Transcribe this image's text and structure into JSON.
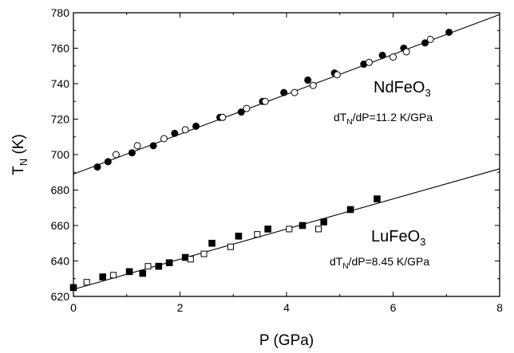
{
  "chart_data": {
    "type": "scatter",
    "xlabel": "P (GPa)",
    "ylabel": "T_N (K)",
    "xlim": [
      0,
      8
    ],
    "ylim": [
      620,
      780
    ],
    "x_ticks": [
      "0",
      "2",
      "4",
      "6",
      "8"
    ],
    "y_ticks": [
      "620",
      "640",
      "660",
      "680",
      "700",
      "720",
      "740",
      "760",
      "780"
    ],
    "grid": false,
    "annotations": {
      "nd_name": "NdFeO3",
      "nd_slope": "dTN/dP=11.2 K/GPa",
      "lu_name": "LuFeO3",
      "lu_slope": "dTN/dP=8.45 K/GPa"
    },
    "series": [
      {
        "compound": "NdFeO3",
        "marker": "filled-circle",
        "x": [
          0.45,
          0.65,
          1.1,
          1.5,
          1.9,
          2.3,
          2.75,
          3.15,
          3.55,
          3.95,
          4.4,
          4.9,
          5.45,
          5.8,
          6.2,
          6.6,
          7.05
        ],
        "y": [
          693,
          696,
          701,
          705,
          712,
          716,
          721,
          724,
          730,
          735,
          742,
          746,
          751,
          756,
          760,
          763,
          769
        ]
      },
      {
        "compound": "NdFeO3",
        "marker": "open-circle",
        "x": [
          0.8,
          1.2,
          1.7,
          2.1,
          2.8,
          3.25,
          3.6,
          4.15,
          4.5,
          4.95,
          5.55,
          6.0,
          6.25,
          6.7
        ],
        "y": [
          700,
          705,
          709,
          714,
          721,
          726,
          730,
          735,
          739,
          745,
          752,
          755,
          758,
          765
        ]
      },
      {
        "compound": "LuFeO3",
        "marker": "filled-square",
        "x": [
          0.0,
          0.55,
          1.05,
          1.3,
          1.6,
          1.8,
          2.1,
          2.6,
          3.1,
          3.65,
          4.3,
          4.7,
          5.2,
          5.7
        ],
        "y": [
          625,
          631,
          634,
          633,
          637,
          639,
          642,
          650,
          654,
          658,
          660,
          662,
          669,
          675
        ]
      },
      {
        "compound": "LuFeO3",
        "marker": "open-square",
        "x": [
          0.25,
          0.75,
          1.4,
          2.2,
          2.45,
          2.95,
          3.45,
          4.05,
          4.6
        ],
        "y": [
          628,
          632,
          637,
          641,
          644,
          648,
          655,
          658,
          658
        ]
      }
    ],
    "fit_lines": [
      {
        "compound": "NdFeO3",
        "x": [
          0,
          8
        ],
        "y": [
          689,
          779
        ]
      },
      {
        "compound": "LuFeO3",
        "x": [
          0,
          8
        ],
        "y": [
          624,
          692
        ]
      }
    ]
  }
}
